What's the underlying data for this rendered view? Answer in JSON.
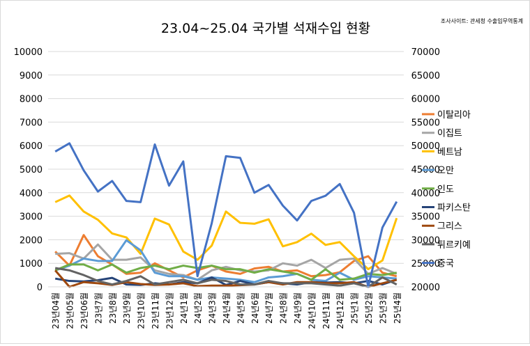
{
  "chart_data": {
    "type": "line",
    "title": "23.04~25.04 국가별 석재수입 현황",
    "source_note": "조사사이트: 관세청 수출입무역통계",
    "ylim": [
      0,
      10000
    ],
    "ylim_right": [
      20000,
      70000
    ],
    "yticks": [
      "0",
      "1000",
      "2000",
      "3000",
      "4000",
      "5000",
      "6000",
      "7000",
      "8000",
      "9000",
      "10000"
    ],
    "yticks_right": [
      "20000",
      "25000",
      "30000",
      "35000",
      "40000",
      "45000",
      "50000",
      "55000",
      "60000",
      "65000",
      "70000"
    ],
    "grid": true,
    "legend_position": "right",
    "categories": [
      "23년04월",
      "23년05월",
      "23년06월",
      "23년7월",
      "23년8월",
      "23년9월",
      "23년10월",
      "23년11월",
      "23년12월",
      "24년1월",
      "24년2월",
      "24년3월",
      "24년4월",
      "24년5월",
      "24년6월",
      "24년7월",
      "24년8월",
      "24년9월",
      "24년10월",
      "24년11월",
      "24년12월",
      "25년1월",
      "25년2월",
      "25년3월",
      "25년4월"
    ],
    "series": [
      {
        "name": "이탈리아",
        "color": "#ED7D31",
        "axis": "left",
        "values": [
          1500,
          900,
          2200,
          1300,
          950,
          550,
          600,
          1000,
          700,
          400,
          700,
          900,
          650,
          550,
          780,
          850,
          650,
          700,
          450,
          500,
          620,
          1100,
          1300,
          600,
          450
        ]
      },
      {
        "name": "이집트",
        "color": "#A5A5A5",
        "axis": "left",
        "values": [
          1400,
          1430,
          1200,
          1800,
          1150,
          1150,
          1250,
          700,
          550,
          500,
          300,
          700,
          850,
          700,
          650,
          700,
          1000,
          900,
          1150,
          800,
          1150,
          1200,
          550,
          800,
          550
        ]
      },
      {
        "name": "베트남",
        "color": "#FFC000",
        "axis": "left",
        "values": [
          3600,
          3880,
          3200,
          2850,
          2270,
          2100,
          1400,
          2900,
          2650,
          1500,
          1150,
          1750,
          3200,
          2720,
          2680,
          2870,
          1720,
          1900,
          2260,
          1780,
          1900,
          1300,
          750,
          1120,
          2920
        ]
      },
      {
        "name": "오만",
        "color": "#5B9BD5",
        "axis": "left",
        "values": [
          700,
          900,
          1200,
          1100,
          1100,
          1980,
          1550,
          600,
          450,
          450,
          300,
          400,
          350,
          300,
          200,
          400,
          450,
          550,
          300,
          250,
          600,
          300,
          450,
          400,
          350
        ]
      },
      {
        "name": "인도",
        "color": "#70AD47",
        "axis": "left",
        "values": [
          700,
          950,
          950,
          700,
          950,
          600,
          800,
          900,
          750,
          900,
          800,
          900,
          750,
          750,
          600,
          750,
          650,
          550,
          300,
          750,
          300,
          350,
          550,
          500,
          600
        ]
      },
      {
        "name": "파키스탄",
        "color": "#264478",
        "axis": "left",
        "values": [
          350,
          250,
          230,
          280,
          380,
          100,
          80,
          150,
          100,
          200,
          150,
          400,
          80,
          250,
          100,
          200,
          150,
          100,
          200,
          180,
          200,
          150,
          250,
          100,
          300
        ]
      },
      {
        "name": "그리스",
        "color": "#9E480E",
        "axis": "left",
        "values": [
          700,
          0,
          200,
          150,
          80,
          200,
          120,
          80,
          100,
          150,
          30,
          50,
          50,
          70,
          100,
          200,
          100,
          200,
          200,
          150,
          150,
          200,
          0,
          150,
          300
        ]
      },
      {
        "name": "튀르키예",
        "color": "#636363",
        "axis": "left",
        "values": [
          800,
          700,
          500,
          250,
          100,
          250,
          450,
          100,
          200,
          300,
          150,
          300,
          250,
          100,
          100,
          250,
          150,
          150,
          150,
          100,
          50,
          150,
          0,
          400,
          100
        ]
      },
      {
        "name": "중국",
        "color": "#4472C4",
        "axis": "right",
        "values": [
          48750,
          50500,
          44750,
          40250,
          42500,
          38250,
          38000,
          50250,
          41500,
          46650,
          22250,
          33500,
          47750,
          47400,
          40000,
          41650,
          37250,
          34100,
          38250,
          39350,
          41850,
          35750,
          20000,
          32600,
          38100
        ]
      }
    ]
  }
}
